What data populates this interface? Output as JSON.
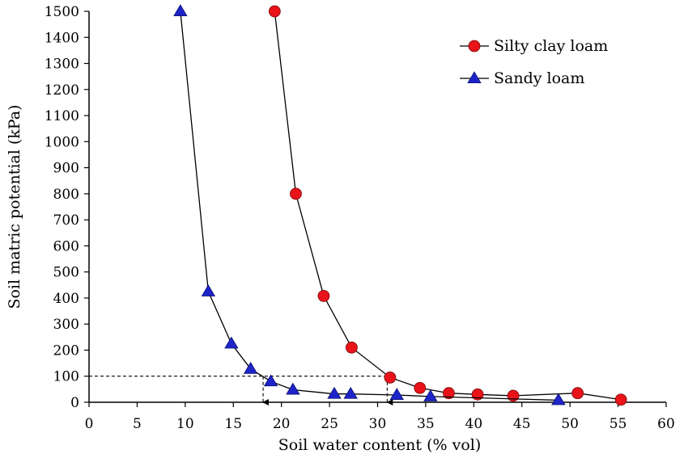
{
  "chart_data": {
    "type": "scatter",
    "title": "",
    "xlabel": "Soil water content (% vol)",
    "ylabel": "Soil matric potential (kPa)",
    "xlim": [
      0,
      60
    ],
    "ylim": [
      0,
      1500
    ],
    "xticks": [
      0,
      5,
      10,
      15,
      20,
      25,
      30,
      35,
      40,
      45,
      50,
      55,
      60
    ],
    "yticks": [
      0,
      100,
      200,
      300,
      400,
      500,
      600,
      700,
      800,
      900,
      1000,
      1100,
      1200,
      1300,
      1400,
      1500
    ],
    "grid": false,
    "legend_position": "top-right",
    "series": [
      {
        "name": "Silty clay loam",
        "marker": "circle",
        "color": "#e8141a",
        "x": [
          19.3,
          21.5,
          24.4,
          27.3,
          31.3,
          34.4,
          37.4,
          40.4,
          44.1,
          50.8,
          55.3
        ],
        "y": [
          1500,
          800,
          408,
          210,
          95,
          55,
          35,
          30,
          25,
          35,
          10
        ]
      },
      {
        "name": "Sandy loam",
        "marker": "triangle",
        "color": "#1e24c8",
        "x": [
          9.5,
          12.4,
          14.8,
          16.8,
          18.9,
          21.2,
          25.5,
          27.2,
          32.0,
          35.5,
          48.8
        ],
        "y": [
          1500,
          425,
          225,
          128,
          80,
          48,
          32,
          32,
          28,
          22,
          8
        ]
      }
    ],
    "annotations": [
      {
        "type": "dashed-line",
        "from": [
          0,
          100
        ],
        "to": [
          31.3,
          100
        ]
      },
      {
        "type": "dashed-arrow",
        "from": [
          18.1,
          100
        ],
        "to": [
          18.1,
          0
        ]
      },
      {
        "type": "dashed-arrow",
        "from": [
          31.0,
          100
        ],
        "to": [
          31.0,
          0
        ]
      }
    ]
  }
}
